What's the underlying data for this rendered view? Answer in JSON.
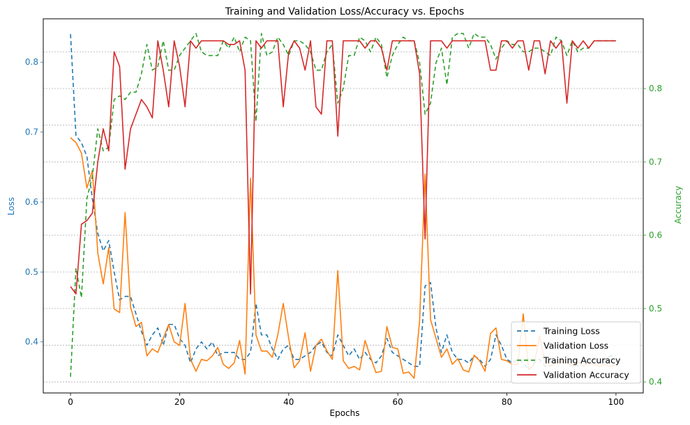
{
  "chart_data": {
    "type": "line",
    "title": "Training and Validation Loss/Accuracy vs. Epochs",
    "xlabel": "Epochs",
    "ylabel_left": "Loss",
    "ylabel_right": "Accuracy",
    "colors": {
      "left_axis": "#1f77b4",
      "right_axis": "#2ca02c"
    },
    "xlim": [
      -5,
      105
    ],
    "ylim_left": [
      0.327,
      0.862
    ],
    "ylim_right": [
      0.385,
      0.895
    ],
    "xticks": [
      "0",
      "20",
      "40",
      "60",
      "80",
      "100"
    ],
    "yticks_left": [
      "0.4",
      "0.5",
      "0.6",
      "0.7",
      "0.8"
    ],
    "yticks_right": [
      "0.4",
      "0.5",
      "0.6",
      "0.7",
      "0.8"
    ],
    "grid": "right-axis horizontal dotted",
    "legend_position": "lower-right",
    "x": [
      0,
      1,
      2,
      3,
      4,
      5,
      6,
      7,
      8,
      9,
      10,
      11,
      12,
      13,
      14,
      15,
      16,
      17,
      18,
      19,
      20,
      21,
      22,
      23,
      24,
      25,
      26,
      27,
      28,
      29,
      30,
      31,
      32,
      33,
      34,
      35,
      36,
      37,
      38,
      39,
      40,
      41,
      42,
      43,
      44,
      45,
      46,
      47,
      48,
      49,
      50,
      51,
      52,
      53,
      54,
      55,
      56,
      57,
      58,
      59,
      60,
      61,
      62,
      63,
      64,
      65,
      66,
      67,
      68,
      69,
      70,
      71,
      72,
      73,
      74,
      75,
      76,
      77,
      78,
      79,
      80,
      81,
      82,
      83,
      84,
      85,
      86,
      87,
      88,
      89,
      90,
      91,
      92,
      93,
      94,
      95,
      96,
      97,
      98,
      99,
      100
    ],
    "series": [
      {
        "name": "Training Loss",
        "axis": "left",
        "color": "#1f77b4",
        "dash": "6,4",
        "values": [
          0.84,
          0.695,
          0.685,
          0.665,
          0.605,
          0.555,
          0.53,
          0.545,
          0.5,
          0.46,
          0.465,
          0.465,
          0.44,
          0.415,
          0.395,
          0.41,
          0.42,
          0.395,
          0.425,
          0.425,
          0.405,
          0.395,
          0.37,
          0.39,
          0.4,
          0.39,
          0.4,
          0.38,
          0.385,
          0.385,
          0.385,
          0.375,
          0.375,
          0.385,
          0.455,
          0.41,
          0.41,
          0.39,
          0.375,
          0.39,
          0.395,
          0.375,
          0.375,
          0.38,
          0.385,
          0.395,
          0.4,
          0.385,
          0.38,
          0.41,
          0.395,
          0.38,
          0.39,
          0.375,
          0.385,
          0.375,
          0.37,
          0.38,
          0.405,
          0.385,
          0.38,
          0.375,
          0.37,
          0.365,
          0.365,
          0.48,
          0.485,
          0.42,
          0.385,
          0.41,
          0.385,
          0.375,
          0.375,
          0.37,
          0.38,
          0.375,
          0.365,
          0.375,
          0.41,
          0.395,
          0.375,
          0.37,
          0.375,
          0.37,
          0.36,
          0.37,
          0.375,
          0.365,
          0.365,
          0.375,
          0.375,
          0.37,
          0.375,
          0.365,
          0.375,
          0.37,
          0.375,
          0.37,
          0.375,
          0.38,
          0.38
        ]
      },
      {
        "name": "Validation Loss",
        "axis": "left",
        "color": "#ff7f0e",
        "dash": "",
        "values": [
          0.692,
          0.685,
          0.67,
          0.62,
          0.645,
          0.527,
          0.483,
          0.535,
          0.447,
          0.442,
          0.585,
          0.45,
          0.422,
          0.428,
          0.38,
          0.39,
          0.385,
          0.405,
          0.425,
          0.4,
          0.395,
          0.455,
          0.375,
          0.358,
          0.375,
          0.373,
          0.38,
          0.392,
          0.368,
          0.362,
          0.37,
          0.402,
          0.354,
          0.634,
          0.41,
          0.387,
          0.387,
          0.378,
          0.41,
          0.455,
          0.405,
          0.363,
          0.373,
          0.413,
          0.358,
          0.395,
          0.404,
          0.387,
          0.375,
          0.502,
          0.373,
          0.362,
          0.365,
          0.36,
          0.402,
          0.378,
          0.356,
          0.358,
          0.422,
          0.392,
          0.39,
          0.355,
          0.357,
          0.348,
          0.43,
          0.64,
          0.432,
          0.405,
          0.378,
          0.39,
          0.368,
          0.376,
          0.36,
          0.357,
          0.381,
          0.373,
          0.358,
          0.412,
          0.42,
          0.375,
          0.373,
          0.368,
          0.368,
          0.44,
          0.36,
          0.368,
          0.408,
          0.37,
          0.365,
          0.37,
          0.372,
          0.37,
          0.365,
          0.372,
          0.365,
          0.37,
          0.368,
          0.365,
          0.368,
          0.365,
          0.368
        ]
      },
      {
        "name": "Training Accuracy",
        "axis": "right",
        "color": "#2ca02c",
        "dash": "6,4",
        "values": [
          0.407,
          0.555,
          0.515,
          0.65,
          0.68,
          0.745,
          0.715,
          0.72,
          0.785,
          0.79,
          0.785,
          0.795,
          0.795,
          0.82,
          0.86,
          0.825,
          0.83,
          0.865,
          0.825,
          0.825,
          0.845,
          0.855,
          0.865,
          0.875,
          0.85,
          0.845,
          0.845,
          0.845,
          0.865,
          0.855,
          0.87,
          0.85,
          0.87,
          0.865,
          0.755,
          0.875,
          0.845,
          0.85,
          0.87,
          0.86,
          0.845,
          0.865,
          0.865,
          0.86,
          0.85,
          0.825,
          0.825,
          0.85,
          0.86,
          0.78,
          0.8,
          0.845,
          0.845,
          0.87,
          0.865,
          0.85,
          0.87,
          0.86,
          0.815,
          0.845,
          0.86,
          0.87,
          0.865,
          0.865,
          0.835,
          0.765,
          0.78,
          0.835,
          0.855,
          0.805,
          0.87,
          0.875,
          0.875,
          0.855,
          0.875,
          0.87,
          0.87,
          0.86,
          0.84,
          0.855,
          0.865,
          0.86,
          0.86,
          0.85,
          0.85,
          0.855,
          0.855,
          0.85,
          0.845,
          0.87,
          0.865,
          0.845,
          0.865,
          0.85,
          0.855,
          0.855,
          0.865,
          0.865,
          0.865,
          0.865,
          0.865
        ]
      },
      {
        "name": "Validation Accuracy",
        "axis": "right",
        "color": "#d62728",
        "dash": "",
        "values": [
          0.53,
          0.52,
          0.615,
          0.62,
          0.63,
          0.7,
          0.745,
          0.715,
          0.85,
          0.83,
          0.69,
          0.745,
          0.765,
          0.785,
          0.775,
          0.76,
          0.865,
          0.825,
          0.775,
          0.865,
          0.83,
          0.775,
          0.865,
          0.855,
          0.865,
          0.865,
          0.865,
          0.865,
          0.865,
          0.86,
          0.86,
          0.865,
          0.825,
          0.52,
          0.865,
          0.855,
          0.865,
          0.865,
          0.865,
          0.775,
          0.85,
          0.865,
          0.855,
          0.825,
          0.865,
          0.775,
          0.765,
          0.865,
          0.865,
          0.735,
          0.865,
          0.865,
          0.865,
          0.865,
          0.855,
          0.865,
          0.865,
          0.855,
          0.825,
          0.865,
          0.865,
          0.865,
          0.865,
          0.865,
          0.82,
          0.595,
          0.865,
          0.865,
          0.865,
          0.855,
          0.865,
          0.865,
          0.865,
          0.865,
          0.865,
          0.865,
          0.865,
          0.825,
          0.825,
          0.865,
          0.865,
          0.855,
          0.865,
          0.865,
          0.825,
          0.865,
          0.865,
          0.82,
          0.865,
          0.855,
          0.865,
          0.78,
          0.865,
          0.855,
          0.865,
          0.855,
          0.865,
          0.865,
          0.865,
          0.865,
          0.865
        ]
      }
    ]
  }
}
